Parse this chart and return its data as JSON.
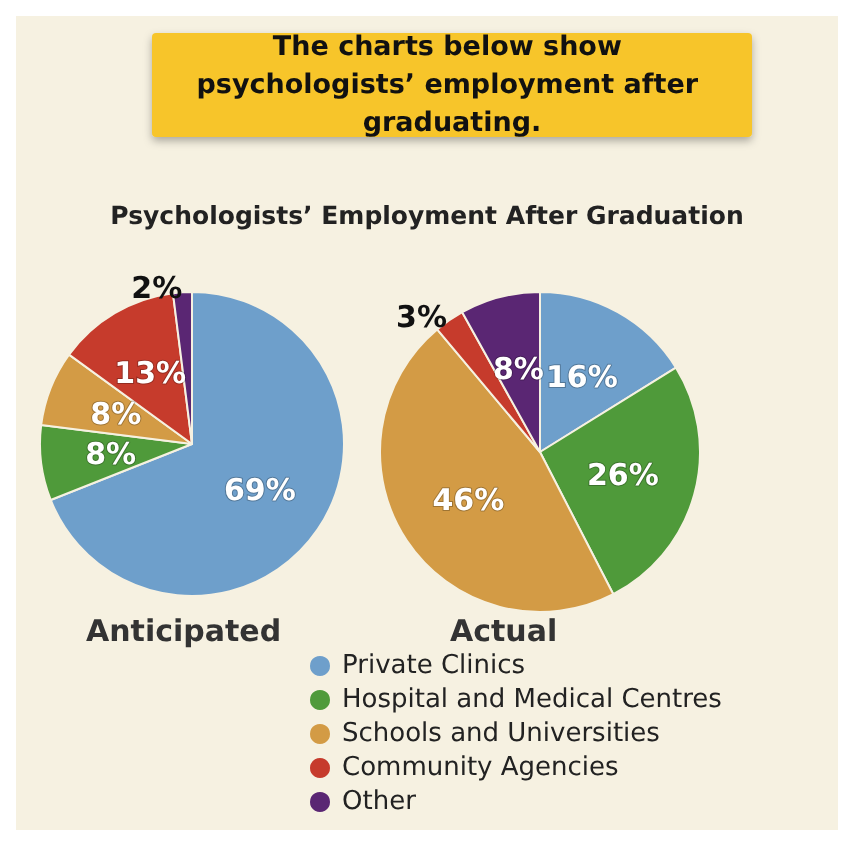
{
  "chart_data": {
    "type": "pie",
    "title": "Psychologists’ Employment After Graduation",
    "annotations": [
      "The charts below show psychologists’ employment after graduating."
    ],
    "categories": [
      "Private Clinics",
      "Hospital and Medical Centres",
      "Schools and Universities",
      "Community Agencies",
      "Other"
    ],
    "colors": [
      "#6e9fcb",
      "#4f9a3a",
      "#d39b45",
      "#c63b2c",
      "#5a2673"
    ],
    "series": [
      {
        "name": "Anticipated",
        "values": [
          69,
          8,
          8,
          13,
          2
        ],
        "value_labels": [
          "69%",
          "8%",
          "8%",
          "13%",
          "2%"
        ]
      },
      {
        "name": "Actual",
        "values": [
          16,
          26,
          46,
          3,
          8
        ],
        "value_labels": [
          "16%",
          "26%",
          "46%",
          "3%",
          "8%"
        ]
      }
    ],
    "legend": "bottom"
  }
}
